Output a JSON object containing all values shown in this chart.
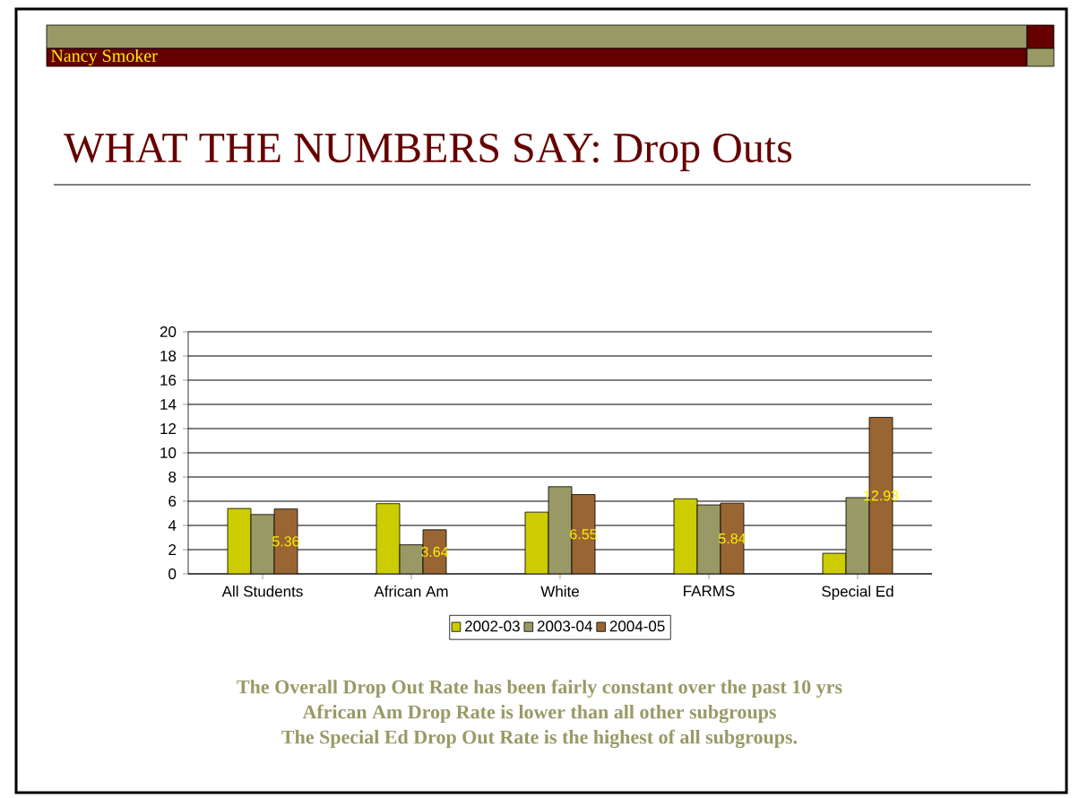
{
  "chart_data": {
    "type": "bar",
    "title": "WHAT THE NUMBERS SAY: Drop Outs",
    "categories": [
      "All Students",
      "African Am",
      "White",
      "FARMS",
      "Special Ed"
    ],
    "series": [
      {
        "name": "2002-03",
        "color": "#cccc00",
        "values": [
          5.4,
          5.8,
          5.1,
          6.2,
          1.7
        ]
      },
      {
        "name": "2003-04",
        "color": "#999966",
        "values": [
          4.9,
          2.4,
          7.2,
          5.7,
          6.3
        ]
      },
      {
        "name": "2004-05",
        "color": "#996633",
        "values": [
          5.36,
          3.64,
          6.55,
          5.84,
          12.93
        ],
        "value_labels": [
          "5.36",
          "3.64",
          "6.55",
          "5.84",
          "12.93"
        ]
      }
    ],
    "ylim": [
      0,
      20
    ],
    "yticks": [
      0,
      2,
      4,
      6,
      8,
      10,
      12,
      14,
      16,
      18,
      20
    ],
    "grid": "y",
    "legend": "bottom",
    "annotations": [
      "Nancy Smoker",
      "The Overall Drop Out Rate has been fairly constant over the past 10 yrs",
      "African Am Drop Rate is lower than all other subgroups",
      "The Special Ed Drop Out Rate is the highest of all subgroups."
    ]
  }
}
